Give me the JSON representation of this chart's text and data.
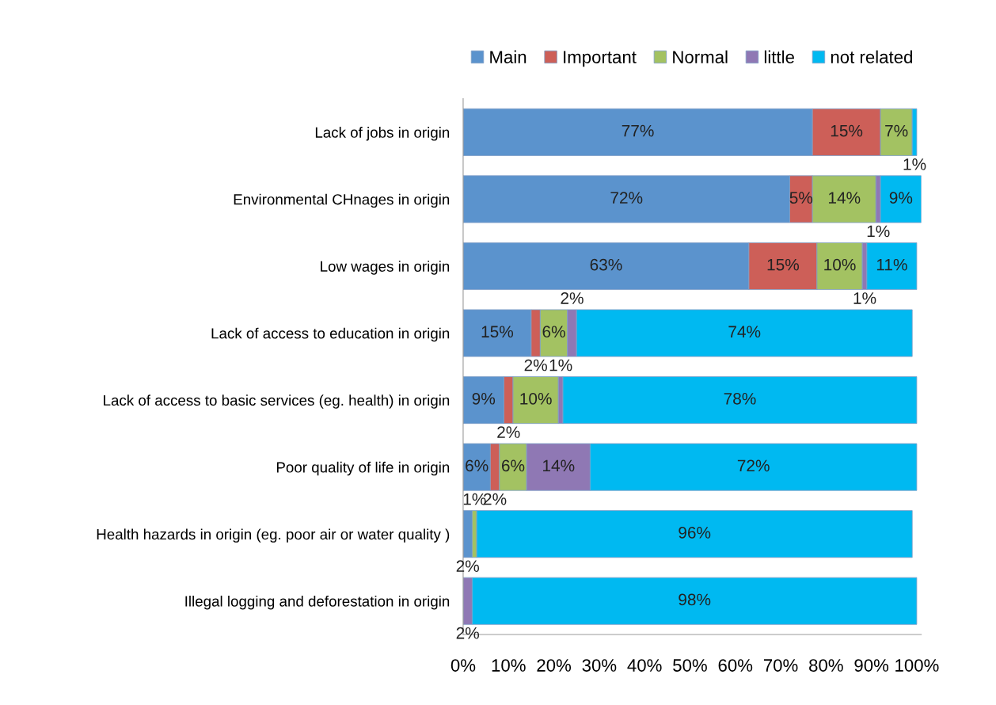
{
  "chart_data": {
    "type": "bar",
    "orientation": "horizontal",
    "stacked": true,
    "categories": [
      "Lack of jobs in origin",
      "Environmental CHnages in origin",
      "Low wages in origin",
      "Lack of access to education in origin",
      "Lack of access to basic services (eg. health) in origin",
      "Poor quality of life in origin",
      "Health hazards in origin (eg. poor air or water quality )",
      "Illegal logging and deforestation in origin"
    ],
    "series": [
      {
        "name": "Main",
        "color": "#5b93cd",
        "values": [
          77,
          72,
          63,
          15,
          9,
          6,
          2,
          null
        ],
        "value_labels": [
          "77%",
          "72%",
          "63%",
          "15%",
          "9%",
          "6%",
          "2%",
          null
        ]
      },
      {
        "name": "Important",
        "color": "#cd5f58",
        "values": [
          15,
          5,
          15,
          2,
          2,
          2,
          null,
          null
        ],
        "value_labels": [
          "15%",
          "5%",
          "15%",
          "2%",
          "2%",
          "2%",
          null,
          null
        ]
      },
      {
        "name": "Normal",
        "color": "#a3c262",
        "values": [
          7,
          14,
          10,
          6,
          10,
          6,
          1,
          null
        ],
        "value_labels": [
          "7%",
          "14%",
          "10%",
          "6%",
          "10%",
          "6%",
          "1%",
          null
        ]
      },
      {
        "name": "little",
        "color": "#8f78b4",
        "values": [
          null,
          1,
          1,
          2,
          1,
          14,
          null,
          2
        ],
        "value_labels": [
          null,
          "1%",
          "1%",
          "2%",
          "1%",
          "14%",
          null,
          "2%"
        ]
      },
      {
        "name": "not related",
        "color": "#00b9f1",
        "values": [
          1,
          9,
          11,
          74,
          78,
          72,
          96,
          98
        ],
        "value_labels": [
          "1%",
          "9%",
          "11%",
          "74%",
          "78%",
          "72%",
          "96%",
          "98%"
        ]
      }
    ],
    "xlim": [
      0,
      101
    ],
    "xticks": [
      {
        "value": 0,
        "label": "0%"
      },
      {
        "value": 10,
        "label": "10%"
      },
      {
        "value": 20,
        "label": "20%"
      },
      {
        "value": 30,
        "label": "30%"
      },
      {
        "value": 40,
        "label": "40%"
      },
      {
        "value": 50,
        "label": "50%"
      },
      {
        "value": 60,
        "label": "60%"
      },
      {
        "value": 70,
        "label": "70%"
      },
      {
        "value": 80,
        "label": "80%"
      },
      {
        "value": 90,
        "label": "90%"
      },
      {
        "value": 100,
        "label": "100%"
      }
    ],
    "grid": false,
    "legend": "top"
  }
}
